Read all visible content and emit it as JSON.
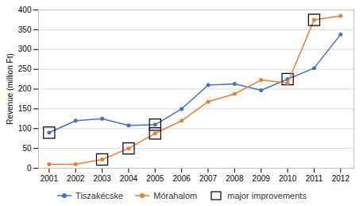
{
  "chart_data": {
    "type": "line",
    "x": [
      2001,
      2002,
      2003,
      2004,
      2005,
      2006,
      2007,
      2008,
      2009,
      2010,
      2011,
      2012
    ],
    "series": [
      {
        "name": "Tiszakécske",
        "color": "#4472c4",
        "marker": "circle",
        "values": [
          90,
          120,
          125,
          108,
          110,
          150,
          210,
          213,
          197,
          225,
          253,
          338
        ],
        "major_improvements": [
          2001,
          2005,
          2010
        ]
      },
      {
        "name": "Mórahalom",
        "color": "#ed7d31",
        "marker": "circle",
        "values": [
          10,
          10,
          22,
          50,
          88,
          120,
          168,
          188,
          223,
          215,
          375,
          385
        ],
        "major_improvements": [
          2003,
          2004,
          2005,
          2011
        ]
      }
    ],
    "highlight_label": "major improvements",
    "highlight_color": "#000000",
    "ylabel": "Revenue (million Ft)",
    "xlim": [
      2000.6,
      2012.5
    ],
    "xticks": [
      2001,
      2002,
      2003,
      2004,
      2005,
      2006,
      2007,
      2008,
      2009,
      2010,
      2011,
      2012
    ],
    "ylim": [
      0,
      400
    ],
    "yticks": [
      0,
      50,
      100,
      150,
      200,
      250,
      300,
      350,
      400
    ],
    "grid": true,
    "legend": "bottom"
  }
}
